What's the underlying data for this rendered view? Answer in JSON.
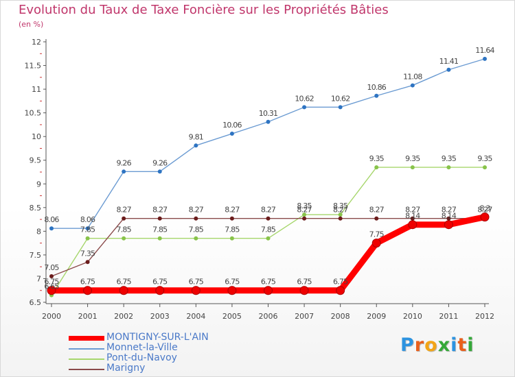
{
  "chart_data": {
    "type": "line",
    "title": "Evolution du Taux de Taxe Foncière sur les Propriétés Bâties",
    "subtitle": "(en %)",
    "xlabel": "",
    "ylabel": "",
    "ylim": [
      6.5,
      12
    ],
    "yticks": [
      "6.5",
      "7",
      "7.5",
      "8",
      "8.5",
      "9",
      "9.5",
      "10",
      "10.5",
      "11",
      "11.5",
      "12"
    ],
    "categories": [
      "2000",
      "2001",
      "2002",
      "2003",
      "2004",
      "2005",
      "2006",
      "2007",
      "2008",
      "2009",
      "2010",
      "2011",
      "2012"
    ],
    "legend_position": "bottom-left",
    "series": [
      {
        "name": "Monnet-la-Ville",
        "color": "#6b9bd2",
        "marker": "#2e74c2",
        "values": [
          8.06,
          8.06,
          9.26,
          9.26,
          9.81,
          10.06,
          10.31,
          10.62,
          10.62,
          10.86,
          11.08,
          11.41,
          11.64
        ],
        "labels": [
          "8.06",
          "8.06",
          "9.26",
          "9.26",
          "9.81",
          "10.06",
          "10.31",
          "10.62",
          "10.62",
          "10.86",
          "11.08",
          "11.41",
          "11.64"
        ]
      },
      {
        "name": "Pont-du-Navoy",
        "color": "#a6d66b",
        "marker": "#88c34a",
        "values": [
          6.65,
          7.85,
          7.85,
          7.85,
          7.85,
          7.85,
          7.85,
          8.35,
          8.35,
          9.35,
          9.35,
          9.35,
          9.35
        ],
        "labels": [
          "6.65",
          "7.85",
          "7.85",
          "7.85",
          "7.85",
          "7.85",
          "7.85",
          "8.35",
          "8.35",
          "9.35",
          "9.35",
          "9.35",
          "9.35"
        ]
      },
      {
        "name": "Marigny",
        "color": "#8a4a4a",
        "marker": "#6b1c1c",
        "values": [
          7.05,
          7.35,
          8.27,
          8.27,
          8.27,
          8.27,
          8.27,
          8.27,
          8.27,
          8.27,
          8.27,
          8.27,
          8.27
        ],
        "labels": [
          "7.05",
          "7.35",
          "8.27",
          "8.27",
          "8.27",
          "8.27",
          "8.27",
          "8.27",
          "8.27",
          "8.27",
          "8.27",
          "8.27",
          "8.27"
        ]
      },
      {
        "name": "MONTIGNY-SUR-L'AIN",
        "color": "#ff0000",
        "marker": "#ee0000",
        "values": [
          6.75,
          6.75,
          6.75,
          6.75,
          6.75,
          6.75,
          6.75,
          6.75,
          6.75,
          7.75,
          8.14,
          8.14,
          8.3
        ],
        "labels": [
          "6.75",
          "6.75",
          "6.75",
          "6.75",
          "6.75",
          "6.75",
          "6.75",
          "6.75",
          "6.75",
          "7.75",
          "8.14",
          "8.14",
          "8.3"
        ]
      }
    ]
  },
  "legend": {
    "items": [
      {
        "name": "MONTIGNY-SUR-L'AIN",
        "color": "#ff0000"
      },
      {
        "name": "Monnet-la-Ville",
        "color": "#6b9bd2"
      },
      {
        "name": "Pont-du-Navoy",
        "color": "#a6d66b"
      },
      {
        "name": "Marigny",
        "color": "#8a4a4a"
      }
    ]
  },
  "brand": {
    "letters": [
      "P",
      "r",
      "o",
      "x",
      "i",
      "t",
      "i"
    ],
    "colors": [
      "#2c93e0",
      "#e95f1b",
      "#f2a517",
      "#34a838",
      "#2c93e0",
      "#e95f1b",
      "#34a838"
    ]
  }
}
